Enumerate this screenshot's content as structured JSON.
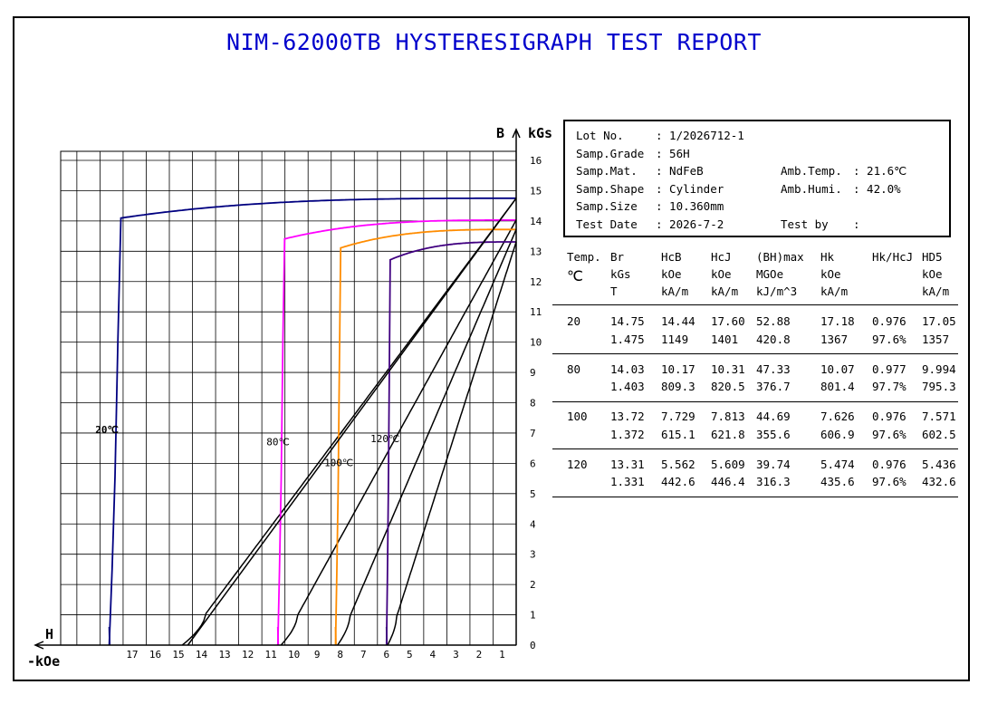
{
  "title": "NIM-62000TB HYSTERESIGRAPH TEST REPORT",
  "info": {
    "rows": [
      {
        "l1": "Lot No.",
        "v1": ": 1/2026712-1",
        "l2": "",
        "v2": ""
      },
      {
        "l1": "Samp.Grade",
        "v1": ": 56H",
        "l2": "",
        "v2": ""
      },
      {
        "l1": "Samp.Mat.",
        "v1": ": NdFeB",
        "l2": "Amb.Temp.",
        "v2": ": 21.6℃"
      },
      {
        "l1": "Samp.Shape",
        "v1": ": Cylinder",
        "l2": "Amb.Humi.",
        "v2": ": 42.0%"
      },
      {
        "l1": "Samp.Size",
        "v1": ": 10.360mm",
        "l2": "",
        "v2": ""
      },
      {
        "l1": "Test Date",
        "v1": ": 2026-7-2",
        "l2": "Test by",
        "v2": ":"
      }
    ]
  },
  "results": {
    "headers": [
      [
        "Temp.",
        "℃",
        ""
      ],
      [
        "Br",
        "kGs",
        "T"
      ],
      [
        "HcB",
        "kOe",
        "kA/m"
      ],
      [
        "HcJ",
        "kOe",
        "kA/m"
      ],
      [
        "(BH)max",
        "MGOe",
        "kJ/m^3"
      ],
      [
        "Hk",
        "kOe",
        "kA/m"
      ],
      [
        "Hk/HcJ",
        "",
        ""
      ],
      [
        "HD5",
        "kOe",
        "kA/m"
      ]
    ],
    "rows": [
      {
        "temp": "20",
        "line1": [
          "14.75",
          "14.44",
          "17.60",
          "52.88",
          "17.18",
          "0.976",
          "17.05"
        ],
        "line2": [
          "1.475",
          "1149",
          "1401",
          "420.8",
          "1367",
          "97.6%",
          "1357"
        ]
      },
      {
        "temp": "80",
        "line1": [
          "14.03",
          "10.17",
          "10.31",
          "47.33",
          "10.07",
          "0.977",
          "9.994"
        ],
        "line2": [
          "1.403",
          "809.3",
          "820.5",
          "376.7",
          "801.4",
          "97.7%",
          "795.3"
        ]
      },
      {
        "temp": "100",
        "line1": [
          "13.72",
          "7.729",
          "7.813",
          "44.69",
          "7.626",
          "0.976",
          "7.571"
        ],
        "line2": [
          "1.372",
          "615.1",
          "621.8",
          "355.6",
          "606.9",
          "97.6%",
          "602.5"
        ]
      },
      {
        "temp": "120",
        "line1": [
          "13.31",
          "5.562",
          "5.609",
          "39.74",
          "5.474",
          "0.976",
          "5.436"
        ],
        "line2": [
          "1.331",
          "442.6",
          "446.4",
          "316.3",
          "435.6",
          "97.6%",
          "432.6"
        ]
      }
    ]
  },
  "chart_data": {
    "type": "line",
    "xlabel": "H",
    "xunit": "-kOe",
    "ylabel": "B",
    "yunit": "kGs",
    "x_ticks": [
      "17",
      "16",
      "15",
      "14",
      "13",
      "12",
      "11",
      "10",
      "9",
      "8",
      "7",
      "6",
      "5",
      "4",
      "3",
      "2",
      "1"
    ],
    "y_ticks": [
      "0",
      "1",
      "2",
      "3",
      "4",
      "5",
      "6",
      "7",
      "8",
      "9",
      "10",
      "11",
      "12",
      "13",
      "14",
      "15",
      "16"
    ],
    "xlim": [
      0,
      19.7
    ],
    "ylim": [
      0,
      16.3
    ],
    "grid": true,
    "series": [
      {
        "name": "20℃",
        "color": "#000080",
        "Br": 14.75,
        "HcB": 14.44,
        "HcJ": 17.6,
        "Hk": 17.18,
        "label_at": [
          18.2,
          7.0
        ]
      },
      {
        "name": "80℃",
        "color": "#ff00ff",
        "Br": 14.03,
        "HcB": 10.17,
        "HcJ": 10.31,
        "Hk": 10.07,
        "label_at": [
          10.8,
          6.6
        ]
      },
      {
        "name": "100℃",
        "color": "#ff8c00",
        "Br": 13.72,
        "HcB": 7.729,
        "HcJ": 7.813,
        "Hk": 7.626,
        "label_at": [
          8.3,
          5.9
        ]
      },
      {
        "name": "120℃",
        "color": "#400080",
        "Br": 13.31,
        "HcB": 5.562,
        "HcJ": 5.609,
        "Hk": 5.474,
        "label_at": [
          6.3,
          6.7
        ]
      }
    ]
  }
}
